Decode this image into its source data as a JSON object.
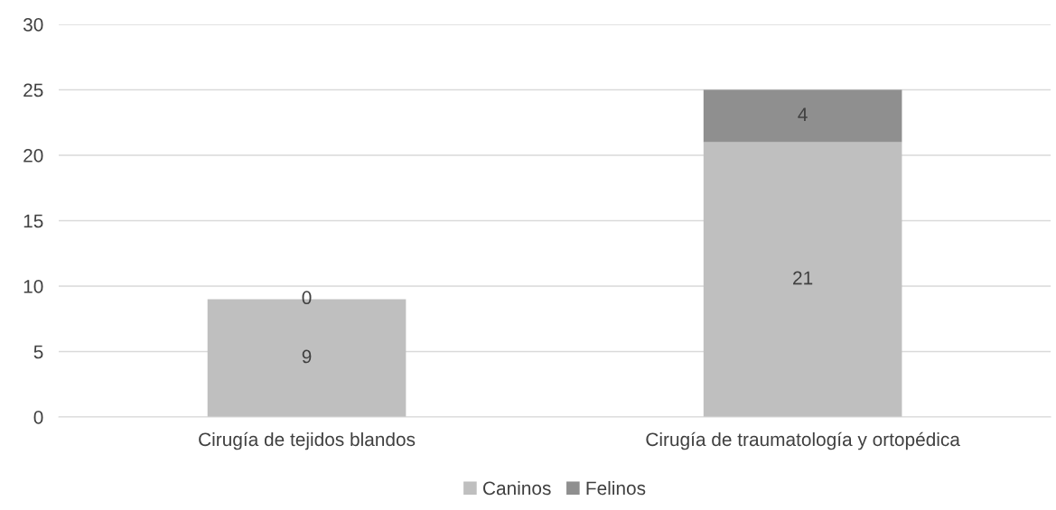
{
  "chart_data": {
    "type": "bar",
    "stacked": true,
    "categories": [
      "Cirugía de tejidos blandos",
      "Cirugía de traumatología y ortopédica"
    ],
    "series": [
      {
        "name": "Caninos",
        "color": "#bfbfbf",
        "values": [
          9,
          21
        ]
      },
      {
        "name": "Felinos",
        "color": "#8f8f8f",
        "values": [
          0,
          4
        ]
      }
    ],
    "ylim": [
      0,
      30
    ],
    "yticks": [
      0,
      5,
      10,
      15,
      20,
      25,
      30
    ],
    "grid": "y",
    "legend": "bottom",
    "data_labels": true
  }
}
